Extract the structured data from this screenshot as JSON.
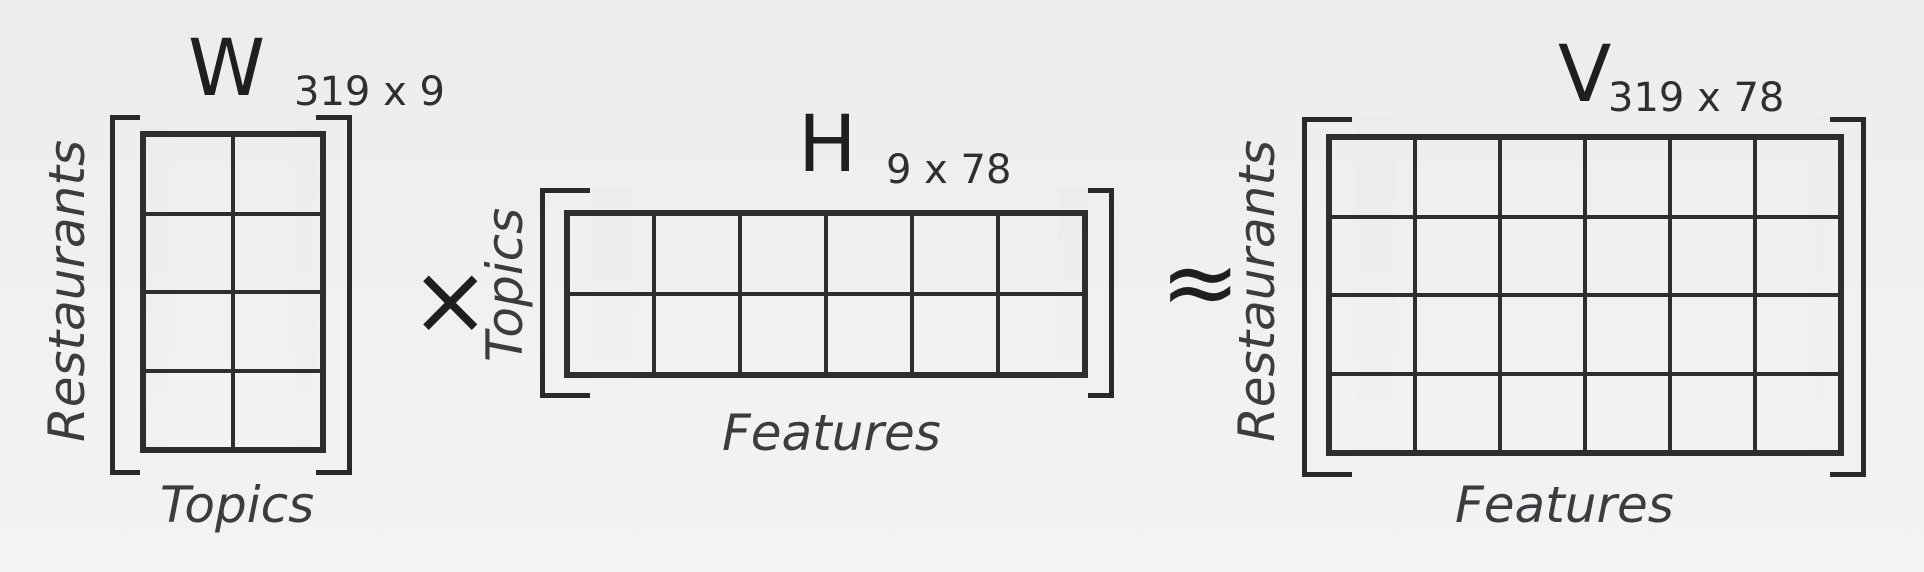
{
  "matrices": {
    "w": {
      "letter": "W",
      "dims": "319 x 9",
      "row_label": "Restaurants",
      "col_label": "Topics",
      "rows": 4,
      "cols": 2
    },
    "h": {
      "letter": "H",
      "dims": "9 x 78",
      "row_label": "Topics",
      "col_label": "Features",
      "rows": 2,
      "cols": 6
    },
    "v": {
      "letter": "V",
      "dims": "319 x 78",
      "row_label": "Restaurants",
      "col_label": "Features",
      "rows": 4,
      "cols": 6
    }
  },
  "operators": {
    "multiply": "×",
    "approx": "≈"
  }
}
